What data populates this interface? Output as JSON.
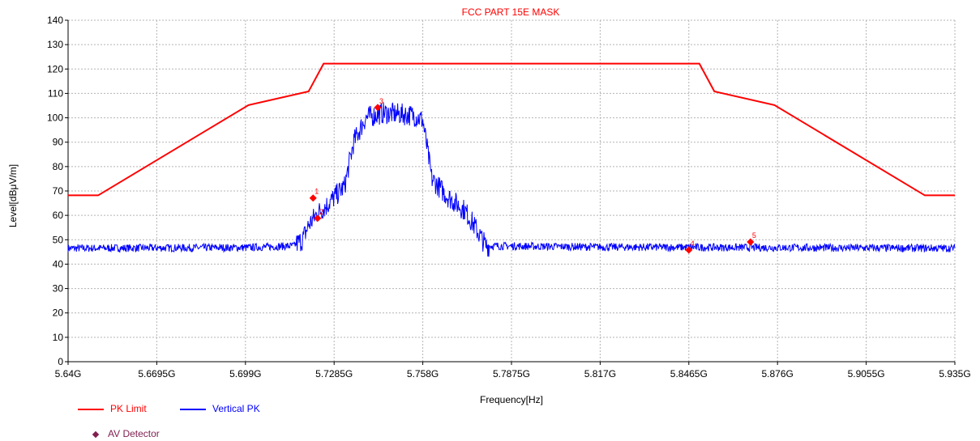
{
  "chart_data": {
    "type": "line",
    "title": "FCC PART 15E MASK",
    "xlabel": "Frequency[Hz]",
    "ylabel": "Level[dBμV/m]",
    "xlim": [
      5.64,
      5.935
    ],
    "ylim": [
      0,
      140
    ],
    "grid": true,
    "x_ticks": [
      5.64,
      5.6695,
      5.699,
      5.7285,
      5.758,
      5.7875,
      5.817,
      5.8465,
      5.876,
      5.9055,
      5.935
    ],
    "x_tick_labels": [
      "5.64G",
      "5.6695G",
      "5.699G",
      "5.7285G",
      "5.758G",
      "5.7875G",
      "5.817G",
      "5.8465G",
      "5.876G",
      "5.9055G",
      "5.935G"
    ],
    "y_ticks": [
      0,
      10,
      20,
      30,
      40,
      50,
      60,
      70,
      80,
      90,
      100,
      110,
      120,
      130,
      140
    ],
    "legend_position": "bottom-left",
    "series": [
      {
        "name": "PK Limit",
        "color": "#ff0000",
        "x": [
          5.64,
          5.65,
          5.7,
          5.72,
          5.725,
          5.85,
          5.855,
          5.875,
          5.925,
          5.935
        ],
        "y": [
          68.2,
          68.2,
          105.2,
          110.8,
          122.2,
          122.2,
          110.8,
          105.2,
          68.2,
          68.2
        ]
      },
      {
        "name": "Vertical PK",
        "color": "#0000ff",
        "x": [
          5.64,
          5.7,
          5.715,
          5.718,
          5.72,
          5.723,
          5.726,
          5.729,
          5.732,
          5.735,
          5.739,
          5.745,
          5.755,
          5.758,
          5.761,
          5.766,
          5.772,
          5.775,
          5.779,
          5.82,
          5.87,
          5.935
        ],
        "y": [
          46.5,
          46.8,
          47.5,
          50,
          56,
          61,
          64,
          68,
          72,
          90,
          100,
          102,
          101,
          99,
          75,
          68,
          62,
          56,
          47.5,
          47,
          46.8,
          46.5
        ]
      },
      {
        "name": "AV Detector",
        "color": "#ff0000",
        "points": [
          {
            "label": "1",
            "x": 5.7215,
            "y": 67.1
          },
          {
            "label": "2",
            "x": 5.723,
            "y": 58.8
          },
          {
            "label": "3",
            "x": 5.743,
            "y": 104.2
          },
          {
            "label": "4",
            "x": 5.8465,
            "y": 45.8
          },
          {
            "label": "5",
            "x": 5.867,
            "y": 49.1
          }
        ]
      }
    ]
  },
  "legend": {
    "pk_limit": "PK Limit",
    "vertical_pk": "Vertical PK",
    "av_detector": "AV Detector",
    "av_marker_color": "#7f1f4f"
  }
}
